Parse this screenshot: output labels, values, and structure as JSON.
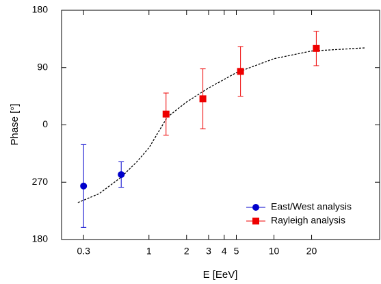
{
  "chart_data": {
    "type": "scatter",
    "x_label": "E [EeV]",
    "y_label": "Phase [°]",
    "xscale": "log",
    "xlim": [
      0.2,
      70
    ],
    "xticks": [
      0.3,
      1,
      2,
      3,
      4,
      5,
      10,
      20
    ],
    "ylim": [
      -180,
      180
    ],
    "yticks": [
      180,
      90,
      0,
      {
        "value": -90,
        "label": "270"
      },
      {
        "value": -180,
        "label": "180"
      }
    ],
    "legend": "lower right",
    "series": [
      {
        "name": "East/West analysis",
        "color": "#0000cc",
        "marker": "circle",
        "x": [
          0.3,
          0.6
        ],
        "values": [
          -96,
          -78
        ],
        "errors": [
          65,
          20
        ]
      },
      {
        "name": "Rayleigh analysis",
        "color": "#ee0000",
        "marker": "square",
        "x": [
          1.37,
          2.7,
          5.4,
          21.8
        ],
        "values": [
          17,
          41,
          84,
          120
        ],
        "errors": [
          33,
          47,
          39,
          27
        ]
      }
    ],
    "fit": {
      "color": "#000000",
      "x": [
        0.27,
        0.4,
        0.6,
        0.8,
        1,
        1.4,
        2,
        3,
        5,
        10,
        20,
        54
      ],
      "values": [
        -122,
        -108,
        -82,
        -58,
        -36,
        12,
        36,
        58,
        82,
        104,
        116,
        121
      ]
    }
  }
}
